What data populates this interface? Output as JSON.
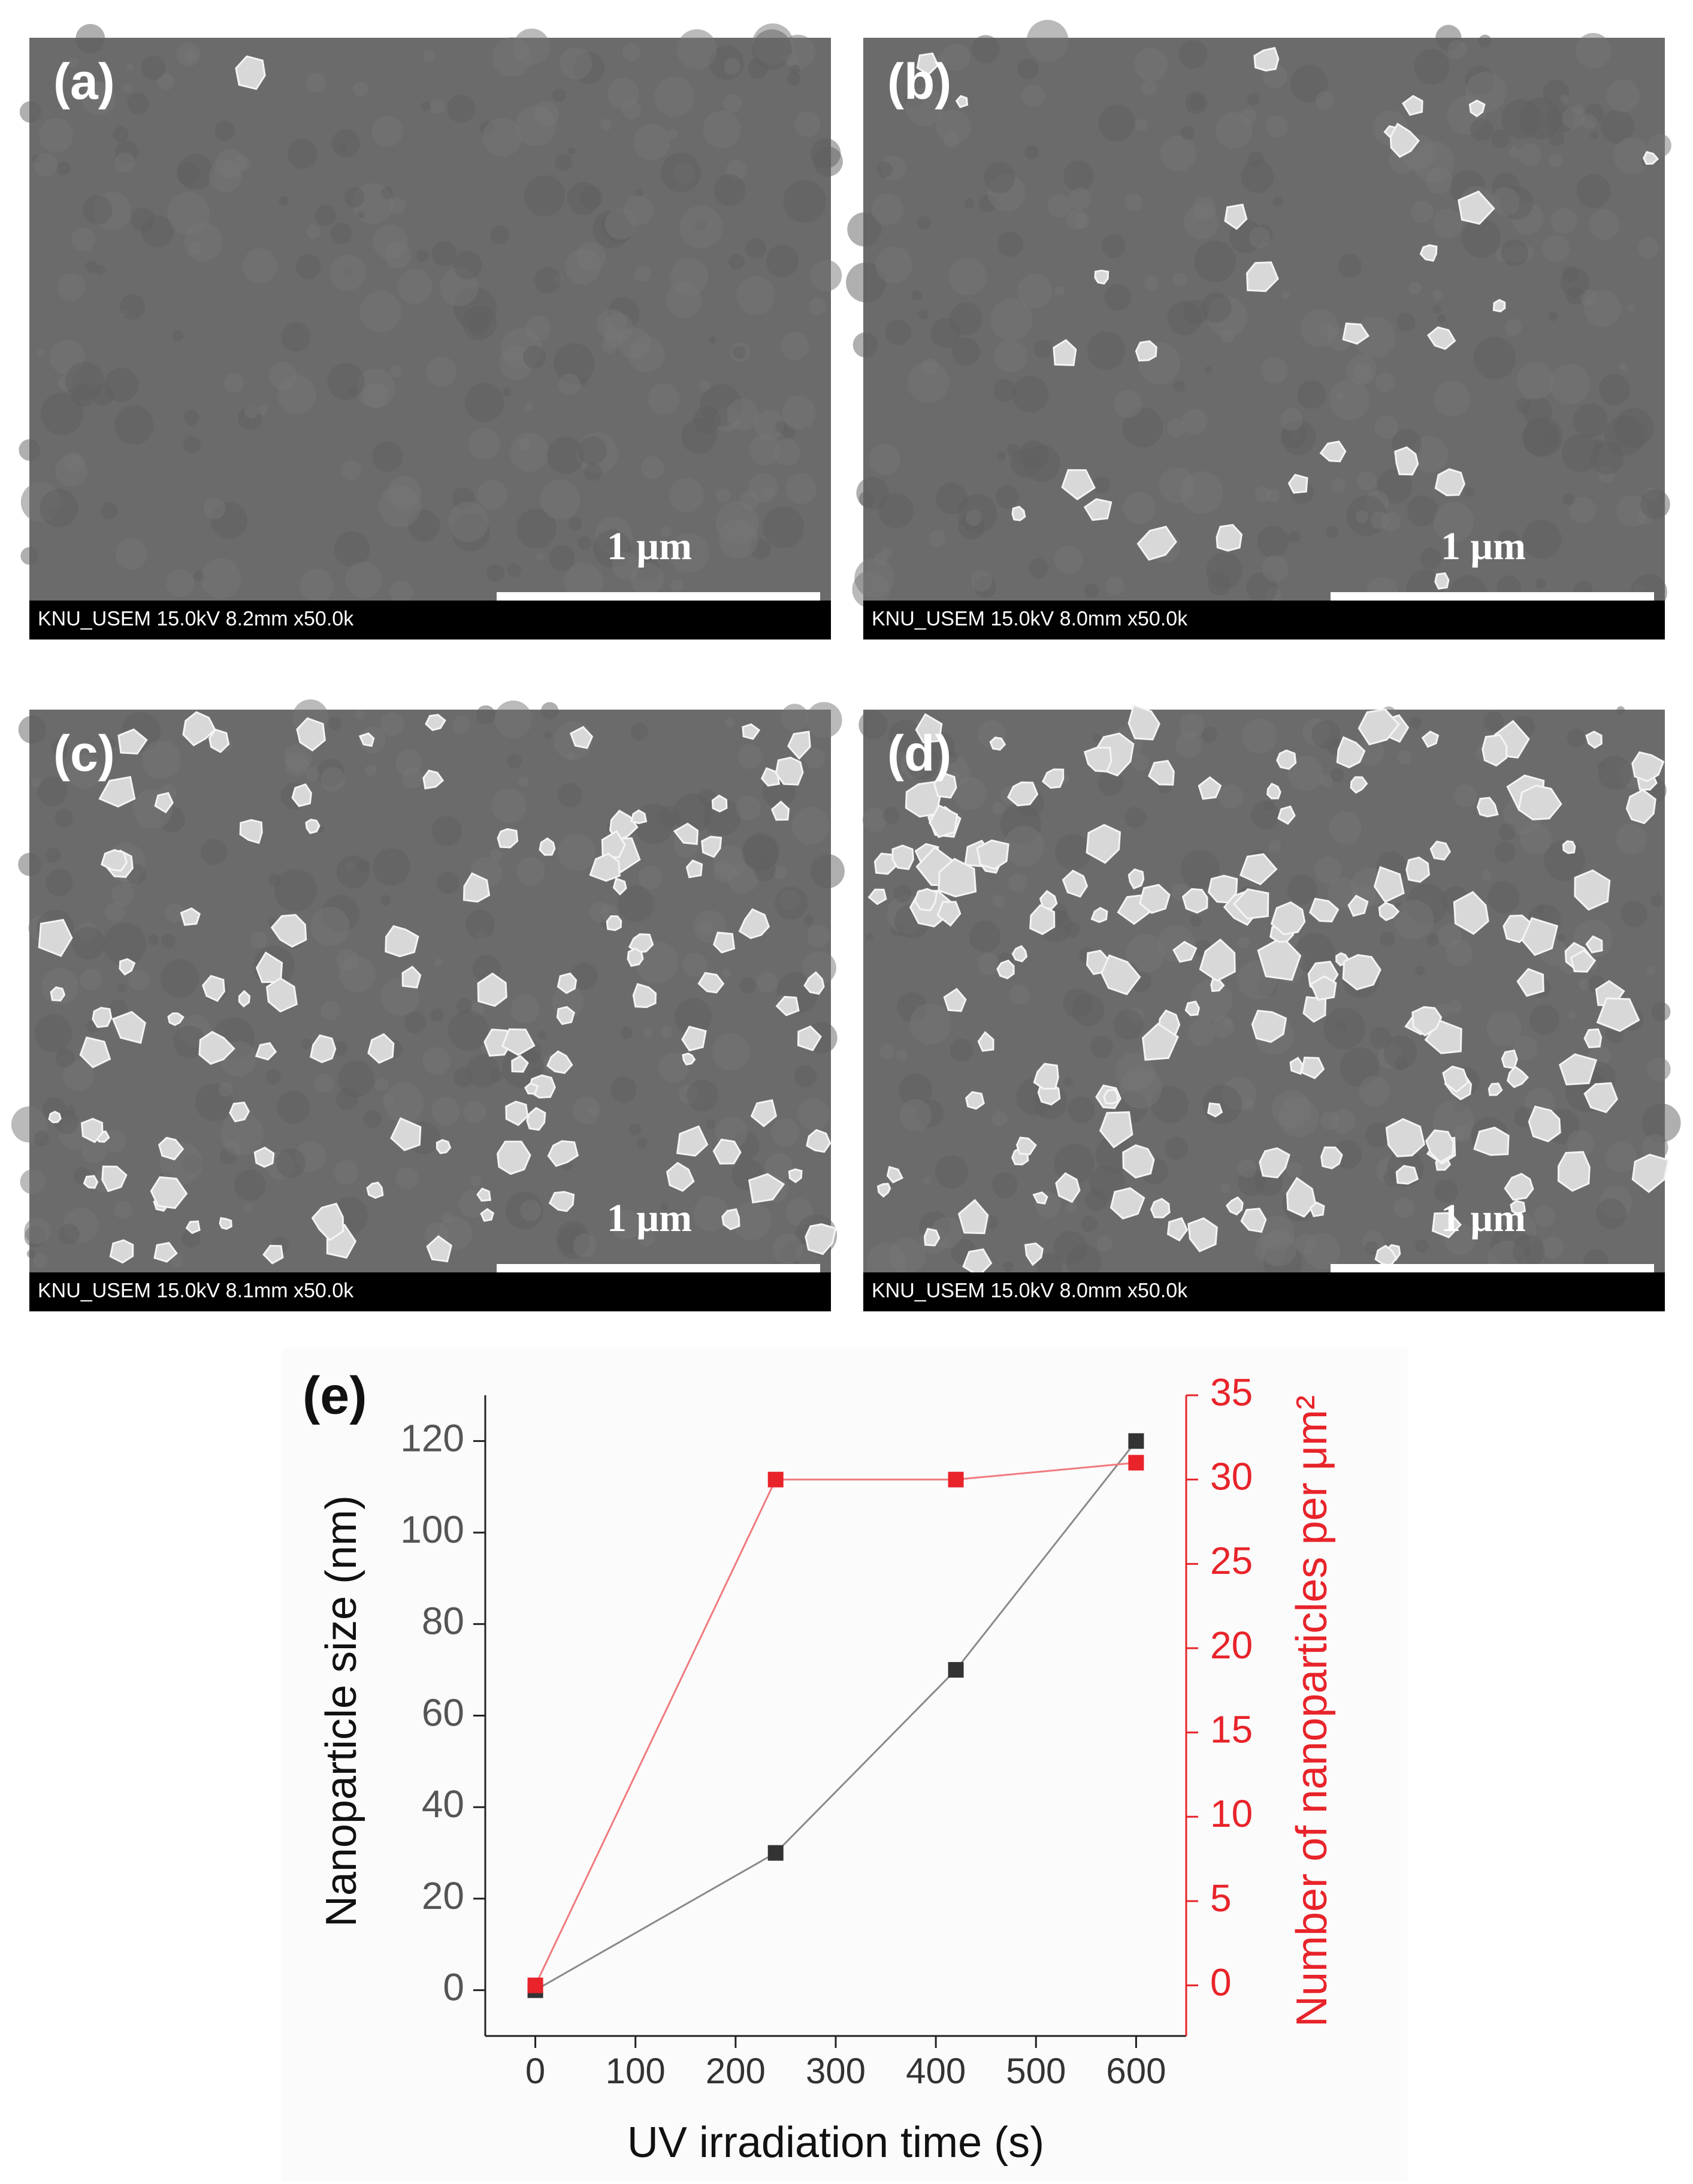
{
  "panels": [
    {
      "label": "(a)",
      "info": "KNU_USEM 15.0kV 8.2mm x50.0k",
      "scale": "1 μm"
    },
    {
      "label": "(b)",
      "info": "KNU_USEM 15.0kV 8.0mm x50.0k",
      "scale": "1 μm"
    },
    {
      "label": "(c)",
      "info": "KNU_USEM 15.0kV 8.1mm x50.0k",
      "scale": "1 μm"
    },
    {
      "label": "(d)",
      "info": "KNU_USEM 15.0kV 8.0mm x50.0k",
      "scale": "1 μm"
    }
  ],
  "chart_data": {
    "type": "line",
    "panel_label": "(e)",
    "x_label": "UV irradiation time (s)",
    "y_label": "Nanoparticle size (nm)",
    "y2_label": "Number of nanoparticles per μm²",
    "xlim": [
      -50,
      650
    ],
    "xticks": [
      0,
      100,
      200,
      300,
      400,
      500,
      600
    ],
    "ylim": [
      -10,
      130
    ],
    "yticks": [
      0,
      20,
      40,
      60,
      80,
      100,
      120
    ],
    "y2lim": [
      -3,
      35
    ],
    "y2ticks": [
      0,
      5,
      10,
      15,
      20,
      25,
      30,
      35
    ],
    "y2_color": "#e8232a",
    "series": [
      {
        "x": [
          0,
          240,
          420,
          600
        ],
        "values": [
          0,
          30,
          70,
          120
        ],
        "color": "#333333",
        "line_color": "#8a8a8a"
      },
      {
        "x": [
          0,
          240,
          420,
          600
        ],
        "values": [
          0,
          30,
          30,
          31
        ],
        "color": "#e8232a",
        "line_color": "#f07a7e",
        "axis": "y2"
      }
    ]
  }
}
